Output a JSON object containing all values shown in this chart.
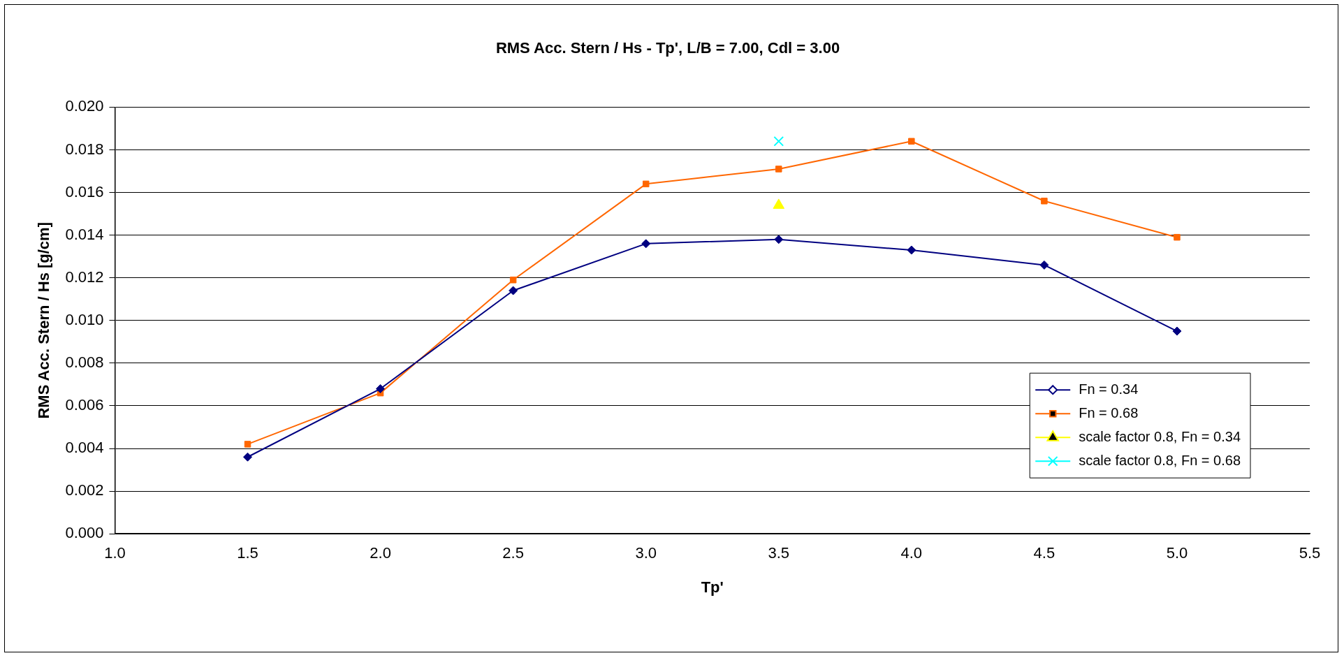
{
  "chart_data": {
    "type": "line",
    "title": "RMS Acc. Stern / Hs - Tp', L/B = 7.00, Cdl = 3.00",
    "xlabel": "Tp'",
    "ylabel": "RMS Acc. Stern / Hs [g/cm]",
    "x": [
      1.5,
      2.0,
      2.5,
      3.0,
      3.5,
      4.0,
      4.5,
      5.0
    ],
    "series": [
      {
        "name": "Fn = 0.34",
        "color": "#000080",
        "marker": "diamond",
        "values": [
          0.0036,
          0.0068,
          0.0114,
          0.0136,
          0.0138,
          0.0133,
          0.0126,
          0.0095
        ]
      },
      {
        "name": "Fn = 0.68",
        "color": "#ff6600",
        "marker": "square",
        "values": [
          0.0042,
          0.0066,
          0.0119,
          0.0164,
          0.0171,
          0.0184,
          0.0156,
          0.0139
        ]
      },
      {
        "name": "scale factor 0.8, Fn = 0.34",
        "type": "scatter",
        "color": "#ffff00",
        "marker": "triangle",
        "x": [
          3.5
        ],
        "values": [
          0.0154
        ]
      },
      {
        "name": "scale factor 0.8, Fn = 0.68",
        "type": "scatter",
        "color": "#00ffff",
        "marker": "cross",
        "x": [
          3.5
        ],
        "values": [
          0.0184
        ]
      }
    ],
    "xlim": [
      1.0,
      5.5
    ],
    "xticks": [
      {
        "value": 1.0,
        "label": "1.0"
      },
      {
        "value": 1.5,
        "label": "1.5"
      },
      {
        "value": 2.0,
        "label": "2.0"
      },
      {
        "value": 2.5,
        "label": "2.5"
      },
      {
        "value": 3.0,
        "label": "3.0"
      },
      {
        "value": 3.5,
        "label": "3.5"
      },
      {
        "value": 4.0,
        "label": "4.0"
      },
      {
        "value": 4.5,
        "label": "4.5"
      },
      {
        "value": 5.0,
        "label": "5.0"
      },
      {
        "value": 5.5,
        "label": "5.5"
      }
    ],
    "ylim": [
      0,
      0.02
    ],
    "yticks": [
      {
        "value": 0,
        "label": "0.000"
      },
      {
        "value": 0.002,
        "label": "0.002"
      },
      {
        "value": 0.004,
        "label": "0.004"
      },
      {
        "value": 0.006,
        "label": "0.006"
      },
      {
        "value": 0.008,
        "label": "0.008"
      },
      {
        "value": 0.01,
        "label": "0.010"
      },
      {
        "value": 0.012,
        "label": "0.012"
      },
      {
        "value": 0.014,
        "label": "0.014"
      },
      {
        "value": 0.016,
        "label": "0.016"
      },
      {
        "value": 0.018,
        "label": "0.018"
      },
      {
        "value": 0.02,
        "label": "0.020"
      }
    ],
    "grid": "y",
    "legend": "bottom right"
  }
}
